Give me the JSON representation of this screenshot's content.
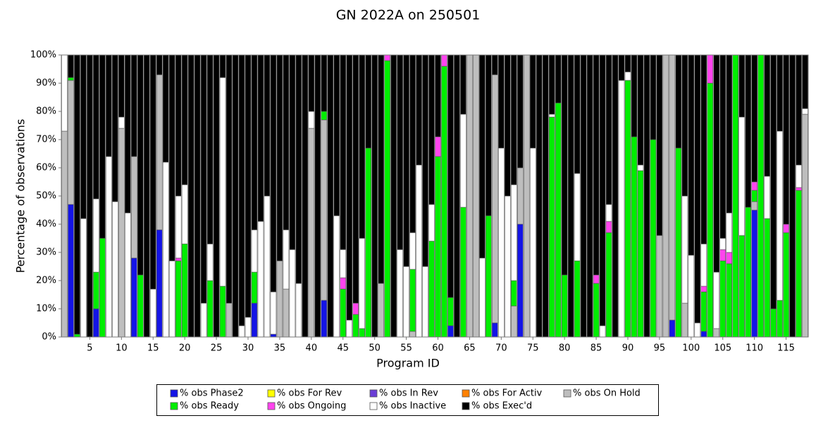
{
  "chart_data": {
    "type": "stacked_bar",
    "title": "GN 2022A on 250501",
    "x_label": "Program ID",
    "y_label": "Percentage of observations",
    "categories": [
      null,
      null,
      null,
      null,
      5,
      null,
      null,
      null,
      null,
      10,
      null,
      null,
      null,
      null,
      15,
      null,
      null,
      null,
      null,
      20,
      null,
      null,
      null,
      null,
      25,
      null,
      null,
      null,
      null,
      30,
      null,
      null,
      null,
      null,
      35,
      null,
      null,
      null,
      null,
      40,
      null,
      null,
      null,
      null,
      45,
      null,
      null,
      null,
      null,
      50,
      null,
      null,
      null,
      null,
      55,
      null,
      null,
      null,
      null,
      60,
      null,
      null,
      null,
      null,
      65,
      null,
      null,
      null,
      null,
      70,
      null,
      null,
      null,
      null,
      75,
      null,
      null,
      null,
      null,
      80,
      null,
      null,
      null,
      null,
      85,
      null,
      null,
      null,
      null,
      90,
      null,
      null,
      null,
      null,
      95,
      null,
      null,
      null,
      null,
      100,
      null,
      null,
      null,
      null,
      105,
      null,
      null,
      null,
      null,
      110,
      null,
      null,
      null,
      null,
      115,
      null,
      null,
      null
    ],
    "ylim": [
      0,
      100
    ],
    "yticks": [
      {
        "value": 0,
        "label": "0%"
      },
      {
        "value": 10,
        "label": "10%"
      },
      {
        "value": 20,
        "label": "20%"
      },
      {
        "value": 30,
        "label": "30%"
      },
      {
        "value": 40,
        "label": "40%"
      },
      {
        "value": 50,
        "label": "50%"
      },
      {
        "value": 60,
        "label": "60%"
      },
      {
        "value": 70,
        "label": "70%"
      },
      {
        "value": 80,
        "label": "80%"
      },
      {
        "value": 90,
        "label": "90%"
      },
      {
        "value": 100,
        "label": "100%"
      }
    ],
    "legend": "bottom",
    "series": [
      {
        "name": "% obs Phase2",
        "color": "#1414e6",
        "values": [
          0,
          47,
          0,
          0,
          0,
          10,
          0,
          0,
          0,
          0,
          0,
          28,
          0,
          0,
          0,
          38,
          0,
          0,
          0,
          0,
          0,
          0,
          0,
          0,
          0,
          0,
          0,
          0,
          0,
          0,
          12,
          0,
          0,
          1,
          0,
          0,
          0,
          0,
          0,
          0,
          0,
          13,
          0,
          0,
          0,
          0,
          0,
          0,
          0,
          0,
          0,
          0,
          0,
          0,
          0,
          0,
          0,
          0,
          0,
          0,
          0,
          4,
          0,
          0,
          0,
          0,
          0,
          0,
          5,
          0,
          0,
          0,
          40,
          0,
          0,
          0,
          0,
          0,
          0,
          0,
          0,
          0,
          0,
          0,
          0,
          0,
          0,
          0,
          0,
          0,
          0,
          0,
          0,
          0,
          0,
          0,
          6,
          0,
          0,
          0,
          0,
          2,
          0,
          0,
          0,
          0,
          0,
          0,
          0,
          45,
          0,
          0,
          0,
          0,
          0,
          0,
          0,
          0
        ]
      },
      {
        "name": "% obs For Rev",
        "color": "#ffff00",
        "values": [
          0,
          0,
          0,
          0,
          0,
          0,
          0,
          0,
          0,
          0,
          0,
          0,
          0,
          0,
          0,
          0,
          0,
          0,
          0,
          0,
          0,
          0,
          0,
          0,
          0,
          0,
          0,
          0,
          0,
          0,
          0,
          0,
          0,
          0,
          0,
          0,
          0,
          0,
          0,
          0,
          0,
          0,
          0,
          0,
          0,
          0,
          0,
          0,
          0,
          0,
          0,
          0,
          0,
          0,
          0,
          0,
          0,
          0,
          0,
          0,
          0,
          0,
          0,
          0,
          0,
          0,
          0,
          0,
          0,
          0,
          0,
          0,
          0,
          0,
          0,
          0,
          0,
          0,
          0,
          0,
          0,
          0,
          0,
          0,
          0,
          0,
          0,
          0,
          0,
          0,
          0,
          0,
          0,
          0,
          0,
          0,
          0,
          0,
          0,
          0,
          0,
          0,
          0,
          0,
          0,
          0,
          0,
          0,
          0,
          0,
          0,
          0,
          0,
          0,
          0,
          0,
          0,
          0
        ]
      },
      {
        "name": "% obs In Rev",
        "color": "#6a3dd6",
        "values": [
          0,
          0,
          0,
          0,
          0,
          0,
          0,
          0,
          0,
          0,
          0,
          0,
          0,
          0,
          0,
          0,
          0,
          0,
          0,
          0,
          0,
          0,
          0,
          0,
          0,
          0,
          0,
          0,
          0,
          0,
          0,
          0,
          0,
          0,
          0,
          0,
          0,
          0,
          0,
          0,
          0,
          0,
          0,
          0,
          0,
          0,
          0,
          0,
          0,
          0,
          0,
          0,
          0,
          0,
          0,
          0,
          0,
          0,
          0,
          0,
          0,
          0,
          0,
          0,
          0,
          0,
          0,
          0,
          0,
          0,
          0,
          0,
          0,
          0,
          0,
          0,
          0,
          0,
          0,
          0,
          0,
          0,
          0,
          0,
          0,
          0,
          0,
          0,
          0,
          0,
          0,
          0,
          0,
          0,
          0,
          0,
          0,
          0,
          0,
          0,
          0,
          0,
          0,
          0,
          0,
          0,
          0,
          0,
          0,
          0,
          0,
          0,
          0,
          0,
          0,
          0,
          0,
          0
        ]
      },
      {
        "name": "% obs For Activ",
        "color": "#ff8000",
        "values": [
          0,
          0,
          0,
          0,
          0,
          0,
          0,
          0,
          0,
          0,
          0,
          0,
          0,
          0,
          0,
          0,
          0,
          0,
          0,
          0,
          0,
          0,
          0,
          0,
          0,
          0,
          0,
          0,
          0,
          0,
          0,
          0,
          0,
          0,
          0,
          0,
          0,
          0,
          0,
          0,
          0,
          0,
          0,
          0,
          0,
          0,
          0,
          0,
          0,
          0,
          0,
          0,
          0,
          0,
          0,
          0,
          0,
          0,
          0,
          0,
          0,
          0,
          0,
          0,
          0,
          0,
          0,
          0,
          0,
          0,
          0,
          0,
          0,
          0,
          0,
          0,
          0,
          0,
          0,
          0,
          0,
          0,
          0,
          0,
          0,
          0,
          0,
          0,
          0,
          0,
          0,
          0,
          0,
          0,
          0,
          0,
          0,
          0,
          0,
          0,
          0,
          0,
          0,
          0,
          0,
          0,
          0,
          0,
          0,
          0,
          0,
          0,
          0,
          0,
          0,
          0,
          0,
          0
        ]
      },
      {
        "name": "% obs On Hold",
        "color": "#bebebe",
        "values": [
          73,
          44,
          0,
          0,
          0,
          0,
          0,
          0,
          0,
          74,
          0,
          36,
          0,
          0,
          0,
          55,
          0,
          0,
          0,
          0,
          0,
          0,
          0,
          0,
          0,
          0,
          12,
          0,
          0,
          0,
          0,
          0,
          0,
          0,
          27,
          17,
          0,
          0,
          0,
          74,
          0,
          64,
          0,
          0,
          0,
          0,
          0,
          0,
          0,
          0,
          19,
          0,
          0,
          0,
          0,
          2,
          0,
          0,
          0,
          0,
          0,
          0,
          0,
          0,
          100,
          100,
          0,
          0,
          88,
          0,
          0,
          11,
          20,
          100,
          0,
          0,
          0,
          0,
          0,
          0,
          0,
          0,
          0,
          0,
          0,
          0,
          0,
          0,
          0,
          0,
          0,
          0,
          0,
          0,
          36,
          100,
          94,
          0,
          12,
          0,
          0,
          0,
          0,
          3,
          0,
          0,
          0,
          0,
          0,
          3,
          0,
          0,
          0,
          0,
          0,
          0,
          0,
          79
        ]
      },
      {
        "name": "% obs Ready",
        "color": "#00ee00",
        "values": [
          0,
          1,
          1,
          0,
          0,
          13,
          35,
          0,
          0,
          0,
          0,
          0,
          22,
          0,
          0,
          0,
          0,
          0,
          27,
          33,
          0,
          0,
          0,
          20,
          0,
          18,
          0,
          0,
          0,
          0,
          11,
          0,
          0,
          0,
          0,
          0,
          0,
          0,
          0,
          0,
          0,
          3,
          0,
          0,
          17,
          0,
          8,
          3,
          67,
          0,
          0,
          98,
          0,
          0,
          0,
          22,
          0,
          0,
          34,
          64,
          96,
          10,
          0,
          46,
          0,
          0,
          0,
          43,
          0,
          0,
          0,
          9,
          0,
          0,
          0,
          0,
          0,
          78,
          83,
          22,
          0,
          27,
          0,
          0,
          19,
          0,
          37,
          0,
          0,
          91,
          71,
          59,
          0,
          70,
          0,
          0,
          0,
          67,
          0,
          0,
          0,
          14,
          90,
          0,
          27,
          26,
          100,
          36,
          46,
          4,
          100,
          42,
          10,
          13,
          37,
          0,
          52,
          0
        ]
      },
      {
        "name": "% obs Ongoing",
        "color": "#ff44ee",
        "values": [
          0,
          0,
          0,
          0,
          0,
          0,
          0,
          0,
          0,
          0,
          0,
          0,
          0,
          0,
          0,
          0,
          0,
          0,
          1,
          0,
          0,
          0,
          0,
          0,
          0,
          0,
          0,
          0,
          0,
          0,
          0,
          0,
          0,
          0,
          0,
          0,
          0,
          0,
          0,
          0,
          0,
          0,
          0,
          0,
          4,
          0,
          4,
          0,
          0,
          0,
          0,
          2,
          0,
          0,
          0,
          0,
          0,
          0,
          0,
          7,
          4,
          0,
          0,
          0,
          0,
          0,
          0,
          0,
          0,
          0,
          0,
          0,
          0,
          0,
          0,
          0,
          0,
          0,
          0,
          0,
          0,
          0,
          0,
          0,
          3,
          0,
          4,
          0,
          0,
          0,
          0,
          0,
          0,
          0,
          0,
          0,
          0,
          0,
          0,
          0,
          0,
          2,
          10,
          0,
          4,
          4,
          0,
          0,
          0,
          3,
          0,
          0,
          0,
          0,
          3,
          0,
          1,
          0
        ]
      },
      {
        "name": "% obs Inactive",
        "color": "#ffffff",
        "values": [
          27,
          0,
          0,
          42,
          0,
          26,
          0,
          64,
          48,
          4,
          44,
          0,
          0,
          0,
          17,
          0,
          62,
          27,
          22,
          21,
          0,
          0,
          12,
          13,
          0,
          74,
          0,
          0,
          4,
          7,
          15,
          41,
          50,
          15,
          0,
          21,
          31,
          19,
          0,
          6,
          0,
          0,
          0,
          43,
          10,
          6,
          0,
          32,
          0,
          0,
          0,
          0,
          0,
          31,
          25,
          13,
          61,
          25,
          13,
          0,
          0,
          0,
          0,
          33,
          0,
          0,
          28,
          0,
          0,
          67,
          50,
          34,
          0,
          0,
          67,
          0,
          0,
          1,
          0,
          0,
          0,
          31,
          0,
          0,
          0,
          4,
          6,
          0,
          91,
          3,
          0,
          2,
          0,
          0,
          0,
          0,
          0,
          0,
          38,
          29,
          5,
          15,
          0,
          20,
          4,
          14,
          0,
          42,
          0,
          0,
          0,
          15,
          0,
          60,
          0,
          0,
          8,
          2
        ]
      },
      {
        "name": "% obs Exec'd",
        "color": "#000000",
        "values": [
          0,
          8,
          99,
          58,
          100,
          51,
          65,
          36,
          52,
          22,
          56,
          36,
          78,
          100,
          83,
          7,
          38,
          73,
          50,
          46,
          100,
          100,
          88,
          67,
          100,
          8,
          88,
          100,
          96,
          93,
          62,
          59,
          50,
          84,
          73,
          62,
          69,
          81,
          100,
          20,
          100,
          20,
          100,
          57,
          69,
          94,
          88,
          65,
          33,
          100,
          81,
          0,
          100,
          69,
          75,
          63,
          39,
          75,
          53,
          29,
          0,
          86,
          100,
          21,
          0,
          0,
          72,
          57,
          7,
          33,
          50,
          46,
          40,
          0,
          33,
          100,
          100,
          21,
          17,
          78,
          100,
          42,
          100,
          100,
          78,
          96,
          53,
          100,
          9,
          6,
          29,
          39,
          100,
          30,
          64,
          0,
          0,
          33,
          50,
          71,
          95,
          67,
          0,
          77,
          65,
          56,
          0,
          22,
          54,
          45,
          0,
          43,
          90,
          27,
          60,
          100,
          39,
          19
        ]
      }
    ]
  }
}
